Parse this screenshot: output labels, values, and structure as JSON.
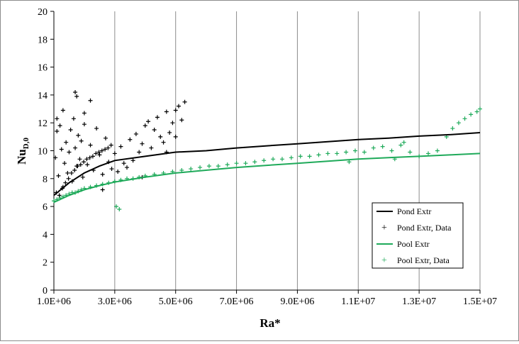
{
  "chart_data": {
    "type": "scatter",
    "title": "",
    "xlabel": "Ra*",
    "ylabel": "Nu",
    "ylabel_sub": "D,0",
    "xlim": [
      1000000,
      15000000
    ],
    "ylim": [
      0,
      20
    ],
    "x_ticks": [
      1000000,
      3000000,
      5000000,
      7000000,
      9000000,
      11000000,
      13000000,
      15000000
    ],
    "x_tick_labels": [
      "1.0E+06",
      "3.0E+06",
      "5.0E+06",
      "7.0E+06",
      "9.0E+06",
      "1.1E+07",
      "1.3E+07",
      "1.5E+07"
    ],
    "y_ticks": [
      0,
      2,
      4,
      6,
      8,
      10,
      12,
      14,
      16,
      18,
      20
    ],
    "y_tick_labels": [
      "0",
      "2",
      "4",
      "6",
      "8",
      "10",
      "12",
      "14",
      "16",
      "18",
      "20"
    ],
    "grid": "vertical major gridlines",
    "legend_position": "inside-bottom-right",
    "colors": {
      "pond": "#000000",
      "pool": "#1faa5a"
    },
    "series": [
      {
        "name": "Pond Extr",
        "kind": "line",
        "color": "#000000",
        "x": [
          1000000,
          1500000,
          2000000,
          2500000,
          3000000,
          4000000,
          5000000,
          6000000,
          7000000,
          8000000,
          9000000,
          10000000,
          11000000,
          12000000,
          13000000,
          14000000,
          15000000
        ],
        "y": [
          6.8,
          7.7,
          8.4,
          8.9,
          9.3,
          9.6,
          9.9,
          10.0,
          10.2,
          10.35,
          10.5,
          10.65,
          10.8,
          10.9,
          11.05,
          11.15,
          11.3
        ]
      },
      {
        "name": "Pond Extr, Data",
        "kind": "scatter",
        "marker": "+",
        "color": "#000000",
        "x": [
          1050000,
          1100000,
          1150000,
          1200000,
          1250000,
          1300000,
          1350000,
          1400000,
          1450000,
          1500000,
          1550000,
          1600000,
          1650000,
          1700000,
          1750000,
          1800000,
          1850000,
          1900000,
          1950000,
          2000000,
          2100000,
          2200000,
          2300000,
          2400000,
          2500000,
          2600000,
          2700000,
          2800000,
          2900000,
          3000000,
          3100000,
          3200000,
          3300000,
          3400000,
          3500000,
          3600000,
          3700000,
          3800000,
          3900000,
          4000000,
          4100000,
          4200000,
          4300000,
          4400000,
          4500000,
          4600000,
          4700000,
          4800000,
          4900000,
          5000000,
          5100000,
          5200000,
          5300000,
          1080000,
          1180000,
          1280000,
          1380000,
          1480000,
          1580000,
          1680000,
          1780000,
          1880000,
          1980000,
          2080000,
          2180000,
          2280000,
          2380000,
          2480000,
          2580000,
          2680000,
          2780000,
          2880000,
          1700000,
          1750000,
          2200000,
          1100000,
          1300000,
          2000000,
          2600000,
          3900000,
          4700000,
          5000000
        ],
        "y": [
          9.5,
          11.4,
          8.2,
          11.8,
          10.1,
          7.4,
          9.1,
          10.6,
          8.4,
          9.9,
          11.5,
          7.8,
          12.3,
          10.2,
          8.9,
          11.1,
          9.4,
          10.7,
          8.1,
          11.9,
          9.0,
          10.4,
          8.6,
          11.6,
          9.7,
          8.3,
          10.9,
          9.2,
          8.7,
          9.8,
          8.5,
          10.3,
          9.1,
          8.8,
          10.8,
          9.3,
          11.2,
          9.9,
          10.5,
          11.8,
          12.1,
          10.2,
          11.5,
          12.4,
          11.0,
          10.6,
          12.8,
          11.3,
          12.0,
          12.9,
          13.2,
          12.2,
          13.5,
          7.0,
          6.8,
          7.3,
          7.7,
          8.0,
          8.4,
          8.6,
          8.9,
          9.0,
          9.2,
          9.4,
          9.5,
          9.6,
          9.8,
          9.9,
          10.0,
          10.1,
          10.2,
          10.4,
          14.2,
          13.9,
          13.6,
          12.3,
          12.9,
          12.7,
          7.2,
          8.1,
          9.9,
          11.0
        ]
      },
      {
        "name": "Pool Extr",
        "kind": "line",
        "color": "#1faa5a",
        "x": [
          1000000,
          1500000,
          2000000,
          2500000,
          3000000,
          4000000,
          5000000,
          6000000,
          7000000,
          8000000,
          9000000,
          10000000,
          11000000,
          12000000,
          13000000,
          14000000,
          15000000
        ],
        "y": [
          6.3,
          6.8,
          7.2,
          7.5,
          7.75,
          8.1,
          8.4,
          8.6,
          8.8,
          8.95,
          9.1,
          9.25,
          9.4,
          9.5,
          9.6,
          9.7,
          9.8
        ]
      },
      {
        "name": "Pool Extr, Data",
        "kind": "scatter",
        "marker": "+",
        "color": "#1faa5a",
        "x": [
          1000000,
          1100000,
          1200000,
          1300000,
          1400000,
          1500000,
          1600000,
          1700000,
          1800000,
          1900000,
          2000000,
          2200000,
          2400000,
          2600000,
          2800000,
          3000000,
          3200000,
          3400000,
          3600000,
          3800000,
          4000000,
          4300000,
          4600000,
          4900000,
          5200000,
          5500000,
          5800000,
          6100000,
          6400000,
          6700000,
          7000000,
          7300000,
          7600000,
          7900000,
          8200000,
          8500000,
          8800000,
          9100000,
          9400000,
          9700000,
          10000000,
          10300000,
          10600000,
          10900000,
          11200000,
          11500000,
          11800000,
          12100000,
          12400000,
          12700000,
          13000000,
          13300000,
          13600000,
          13900000,
          14100000,
          14300000,
          14500000,
          14700000,
          14900000,
          15000000,
          3050000,
          3150000,
          10700000,
          12200000,
          12500000
        ],
        "y": [
          6.4,
          6.5,
          6.6,
          6.7,
          6.8,
          6.9,
          7.0,
          7.0,
          7.1,
          7.2,
          7.3,
          7.4,
          7.5,
          7.6,
          7.7,
          7.8,
          7.9,
          8.0,
          8.0,
          8.1,
          8.2,
          8.3,
          8.4,
          8.5,
          8.6,
          8.7,
          8.8,
          8.9,
          8.9,
          9.0,
          9.1,
          9.1,
          9.2,
          9.3,
          9.4,
          9.4,
          9.5,
          9.6,
          9.6,
          9.7,
          9.8,
          9.8,
          9.9,
          10.0,
          9.9,
          10.2,
          10.3,
          10.0,
          10.4,
          9.9,
          9.6,
          9.8,
          10.0,
          11.0,
          11.6,
          12.0,
          12.3,
          12.6,
          12.8,
          13.0,
          6.0,
          5.8,
          9.2,
          9.4,
          10.6
        ]
      }
    ]
  }
}
